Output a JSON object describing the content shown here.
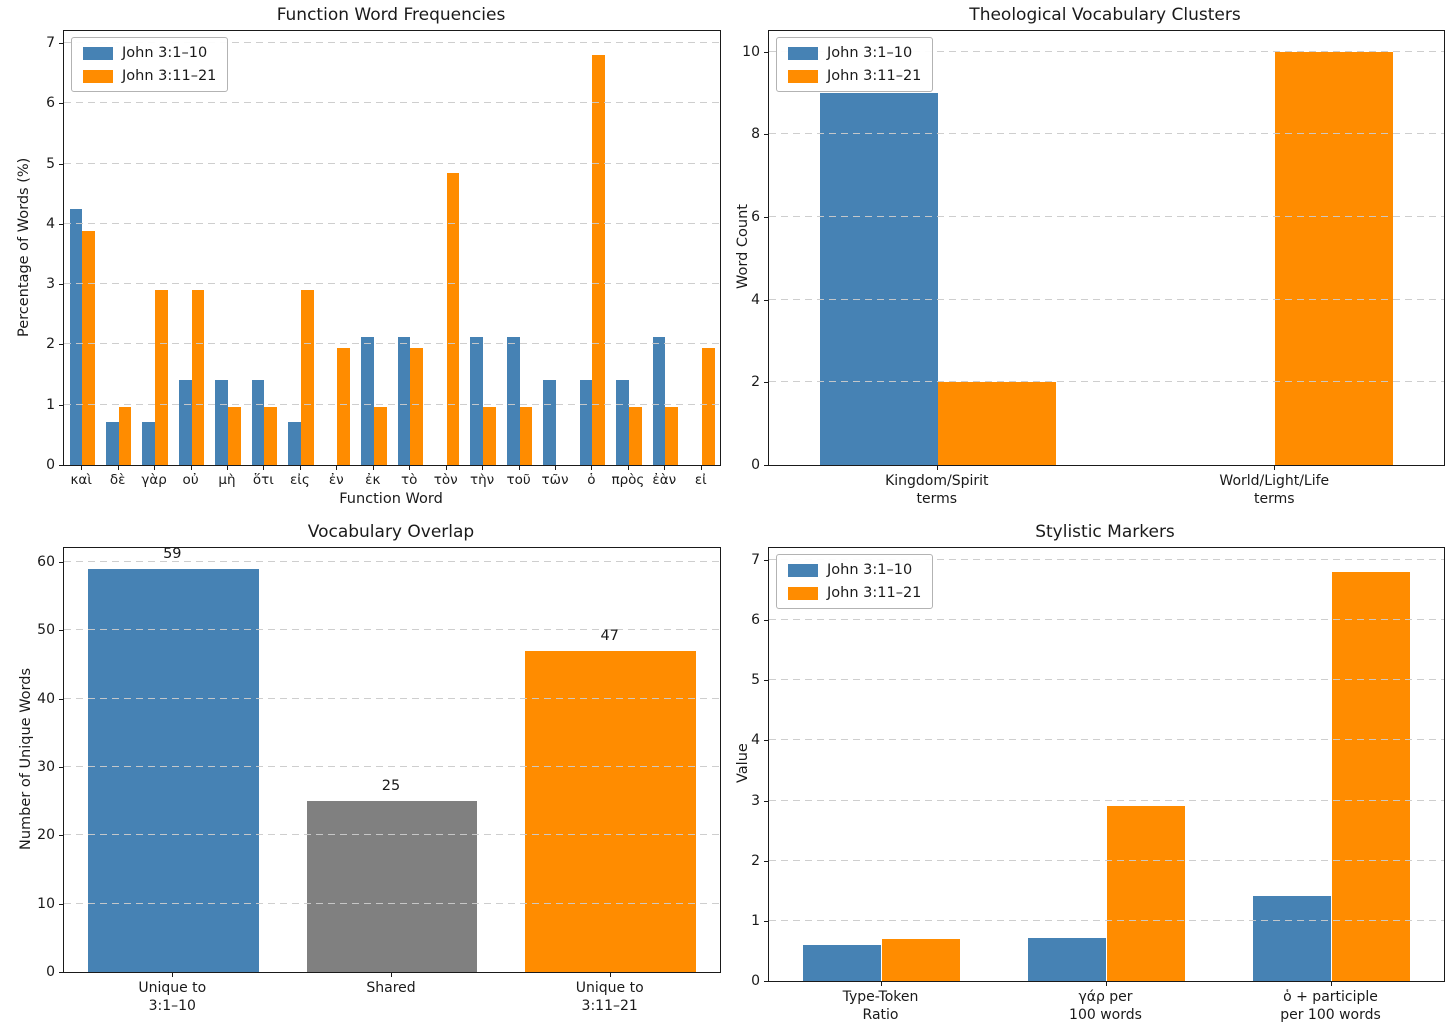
{
  "figure": {
    "background": "#ffffff"
  },
  "colors": {
    "series_blue": "#4682b4",
    "series_orange": "#ff8c00",
    "shared_gray": "#808080"
  },
  "chart_data": [
    {
      "type": "bar",
      "title": "Function Word Frequencies",
      "xlabel": "Function Word",
      "ylabel": "Percentage of Words (%)",
      "categories": [
        "καὶ",
        "δὲ",
        "γὰρ",
        "οὐ",
        "μὴ",
        "ὅτι",
        "εἰς",
        "ἐν",
        "ἐκ",
        "τὸ",
        "τὸν",
        "τὴν",
        "τοῦ",
        "τῶν",
        "ὁ",
        "πρὸς",
        "ἐὰν",
        "εἰ"
      ],
      "series": [
        {
          "name": "John 3:1–10",
          "color": "#4682b4",
          "values": [
            4.24,
            0.71,
            0.71,
            1.41,
            1.41,
            1.41,
            0.71,
            0,
            2.12,
            2.12,
            0,
            2.12,
            2.12,
            1.41,
            1.41,
            1.41,
            2.12,
            0
          ]
        },
        {
          "name": "John 3:11–21",
          "color": "#ff8c00",
          "values": [
            3.88,
            0.97,
            2.91,
            2.91,
            0.97,
            0.97,
            2.91,
            1.94,
            0.97,
            1.94,
            4.85,
            0.97,
            0.97,
            0,
            6.8,
            0.97,
            0.97,
            1.94
          ]
        }
      ],
      "ylim": [
        0,
        7.2
      ],
      "yticks": [
        0,
        1,
        2,
        3,
        4,
        5,
        6,
        7
      ],
      "grid": "dashed-horizontal",
      "legend_position": "upper-left",
      "bar_width": 0.35
    },
    {
      "type": "bar",
      "title": "Theological Vocabulary Clusters",
      "xlabel": "",
      "ylabel": "Word Count",
      "categories": [
        "Kingdom/Spirit\nterms",
        "World/Light/Life\nterms"
      ],
      "series": [
        {
          "name": "John 3:1–10",
          "color": "#4682b4",
          "values": [
            9,
            0
          ]
        },
        {
          "name": "John 3:11–21",
          "color": "#ff8c00",
          "values": [
            2,
            10
          ]
        }
      ],
      "ylim": [
        0,
        10.5
      ],
      "yticks": [
        0,
        2,
        4,
        6,
        8,
        10
      ],
      "grid": "dashed-horizontal",
      "legend_position": "upper-left",
      "bar_width": 0.35
    },
    {
      "type": "bar",
      "title": "Vocabulary Overlap",
      "xlabel": "",
      "ylabel": "Number of Unique Words",
      "categories": [
        "Unique to\n3:1–10",
        "Shared",
        "Unique to\n3:11–21"
      ],
      "values": [
        59,
        25,
        47
      ],
      "bar_colors": [
        "#4682b4",
        "#808080",
        "#ff8c00"
      ],
      "bar_labels": [
        "59",
        "25",
        "47"
      ],
      "ylim": [
        0,
        62
      ],
      "yticks": [
        0,
        10,
        20,
        30,
        40,
        50,
        60
      ],
      "grid": "dashed-horizontal",
      "legend_position": "none",
      "bar_width": 0.78
    },
    {
      "type": "bar",
      "title": "Stylistic Markers",
      "xlabel": "",
      "ylabel": "Value",
      "categories": [
        "Type-Token\nRatio",
        "γάρ per\n100 words",
        "ὁ + participle\nper 100 words"
      ],
      "series": [
        {
          "name": "John 3:1–10",
          "color": "#4682b4",
          "values": [
            0.6,
            0.71,
            1.41
          ]
        },
        {
          "name": "John 3:11–21",
          "color": "#ff8c00",
          "values": [
            0.7,
            2.91,
            6.8
          ]
        }
      ],
      "ylim": [
        0,
        7.2
      ],
      "yticks": [
        0,
        1,
        2,
        3,
        4,
        5,
        6,
        7
      ],
      "grid": "dashed-horizontal",
      "legend_position": "upper-left",
      "bar_width": 0.35
    }
  ]
}
